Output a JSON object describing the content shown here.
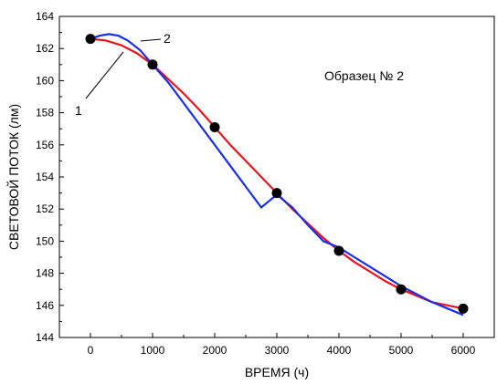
{
  "chart_data": {
    "type": "scatter",
    "xlabel": "ВРЕМЯ (ч)",
    "ylabel": "СВЕТОВОЙ ПОТОК (лм)",
    "xlim": [
      -500,
      6500
    ],
    "ylim": [
      144,
      164
    ],
    "x_ticks": [
      0,
      1000,
      2000,
      3000,
      4000,
      5000,
      6000
    ],
    "y_ticks": [
      144,
      146,
      148,
      150,
      152,
      154,
      156,
      158,
      160,
      162,
      164
    ],
    "grid": false,
    "points": {
      "x": [
        0,
        1000,
        2000,
        3000,
        4000,
        5000,
        6000
      ],
      "y": [
        162.6,
        161.0,
        157.1,
        153.0,
        149.4,
        147.0,
        145.8
      ],
      "color": "#000000"
    },
    "series": [
      {
        "label": "1",
        "color": "#e8141e",
        "x": [
          0,
          250,
          500,
          750,
          1000,
          1250,
          1500,
          1750,
          2000,
          2250,
          2500,
          2750,
          3000,
          3250,
          3500,
          3750,
          4000,
          4250,
          4500,
          4750,
          5000,
          5250,
          5500,
          5750,
          6000
        ],
        "y": [
          162.6,
          162.5,
          162.2,
          161.7,
          161.0,
          160.1,
          159.2,
          158.2,
          157.1,
          156.0,
          155.0,
          154.0,
          153.0,
          152.0,
          151.1,
          150.2,
          149.4,
          148.7,
          148.1,
          147.5,
          147.0,
          146.6,
          146.2,
          146.0,
          145.8
        ]
      },
      {
        "label": "2",
        "color": "#1a2ee8",
        "x": [
          0,
          150,
          300,
          450,
          600,
          800,
          1000,
          1250,
          1500,
          1750,
          2000,
          2250,
          2500,
          2750,
          3000,
          3250,
          3500,
          3750,
          4000,
          4250,
          4500,
          4750,
          5000,
          5250,
          5500,
          5750,
          6000
        ],
        "y": [
          162.6,
          162.8,
          162.9,
          162.8,
          162.5,
          161.9,
          161.0,
          159.9,
          158.6,
          157.3,
          156.0,
          154.7,
          153.4,
          152.1,
          152.9,
          152.1,
          151.0,
          150.0,
          149.6,
          149.0,
          148.4,
          147.8,
          147.2,
          146.7,
          146.2,
          145.8,
          145.4
        ]
      }
    ],
    "annotations": [
      {
        "text": "Образец № 2"
      }
    ]
  }
}
